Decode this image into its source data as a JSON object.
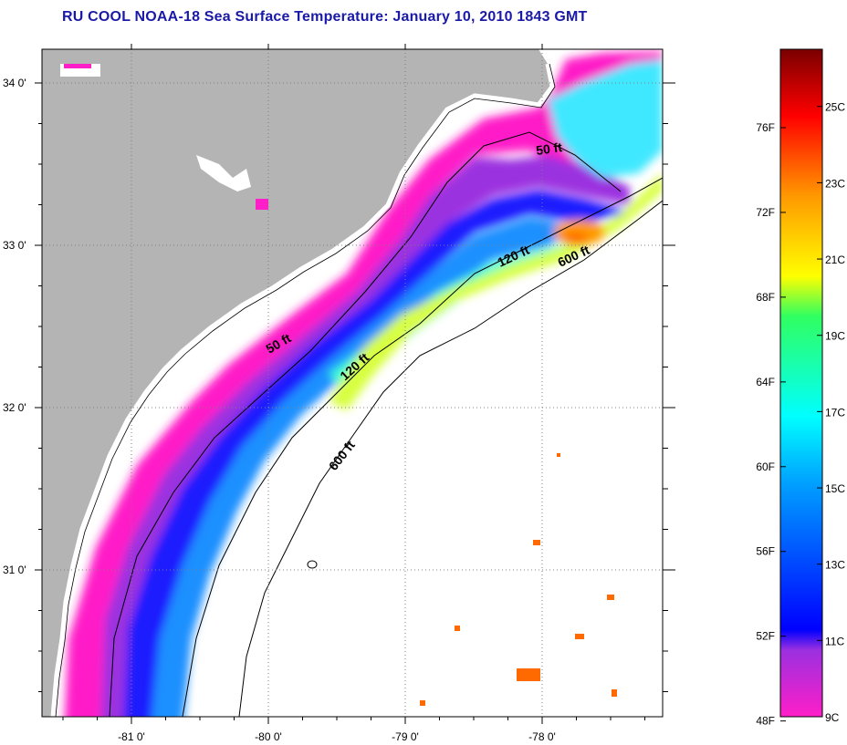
{
  "title": "RU COOL  NOAA-18  Sea Surface Temperature:  January 10, 2010 1843 GMT",
  "map": {
    "lat_labels": [
      {
        "value": 34,
        "label": "34 0'"
      },
      {
        "value": 33,
        "label": "33 0'"
      },
      {
        "value": 32,
        "label": "32 0'"
      },
      {
        "value": 31,
        "label": "31 0'"
      }
    ],
    "lon_labels": [
      {
        "value": -81,
        "label": "-81 0'"
      },
      {
        "value": -80,
        "label": "-80 0'"
      },
      {
        "value": -79,
        "label": "-79 0'"
      },
      {
        "value": -78,
        "label": "-78 0'"
      }
    ],
    "depth_labels": [
      {
        "id": "50ft-north",
        "text": "50 ft"
      },
      {
        "id": "50ft-south",
        "text": "50 ft"
      },
      {
        "id": "120ft-north",
        "text": "120 ft"
      },
      {
        "id": "120ft-south",
        "text": "120 ft"
      },
      {
        "id": "600ft-north",
        "text": "600 ft"
      },
      {
        "id": "600ft-south",
        "text": "600 ft"
      }
    ],
    "colors": {
      "land": "#b4b4b4",
      "no_data": "#ffffff",
      "grid": "#808080"
    }
  },
  "colorbar": {
    "fahrenheit_labels": [
      "76F",
      "72F",
      "68F",
      "64F",
      "60F",
      "56F",
      "52F",
      "48F"
    ],
    "celsius_labels": [
      "25C",
      "23C",
      "21C",
      "19C",
      "17C",
      "15C",
      "13C",
      "11C",
      "9C"
    ],
    "range_c": [
      9,
      26.5
    ],
    "color_stops": [
      {
        "t": 0.0,
        "color": "#ff1ec8"
      },
      {
        "t": 0.1,
        "color": "#9b30e0"
      },
      {
        "t": 0.13,
        "color": "#0000ff"
      },
      {
        "t": 0.35,
        "color": "#00a0ff"
      },
      {
        "t": 0.45,
        "color": "#00ffff"
      },
      {
        "t": 0.6,
        "color": "#30ff60"
      },
      {
        "t": 0.66,
        "color": "#ffff00"
      },
      {
        "t": 0.78,
        "color": "#ff9900"
      },
      {
        "t": 0.9,
        "color": "#ff0000"
      },
      {
        "t": 1.0,
        "color": "#7a0000"
      }
    ]
  }
}
